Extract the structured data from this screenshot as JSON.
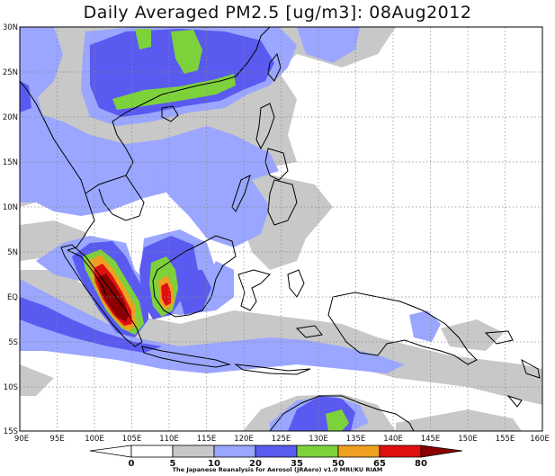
{
  "title": "Daily Averaged PM2.5 [ug/m3]: 08Aug2012",
  "footer": "The Japanese Reanalysis for Aerosol (JRAero) v1.0 MRI/KU RIAM",
  "map": {
    "lon_range": [
      90,
      160
    ],
    "lat_range": [
      -15,
      30
    ],
    "lat_labels": [
      "30N",
      "25N",
      "20N",
      "15N",
      "10N",
      "5N",
      "EQ",
      "5S",
      "10S",
      "15S"
    ],
    "lon_labels": [
      "90E",
      "95E",
      "100E",
      "105E",
      "110E",
      "115E",
      "120E",
      "125E",
      "130E",
      "135E",
      "140E",
      "145E",
      "150E",
      "155E",
      "160E"
    ]
  },
  "colorbar": {
    "levels": [
      "0",
      "5",
      "10",
      "20",
      "35",
      "50",
      "65",
      "80"
    ],
    "colors": [
      "#ffffff",
      "#ffffff",
      "#c8c8c8",
      "#9aa6ff",
      "#5a5af0",
      "#7dd23c",
      "#f0a020",
      "#e01010",
      "#8a0000"
    ]
  },
  "palette": {
    "grey": "#c8c8c8",
    "lightblue": "#9aa6ff",
    "blue": "#5a5af0",
    "green": "#7dd23c",
    "orange": "#f0a020",
    "red": "#e01010",
    "darkred": "#8a0000"
  }
}
